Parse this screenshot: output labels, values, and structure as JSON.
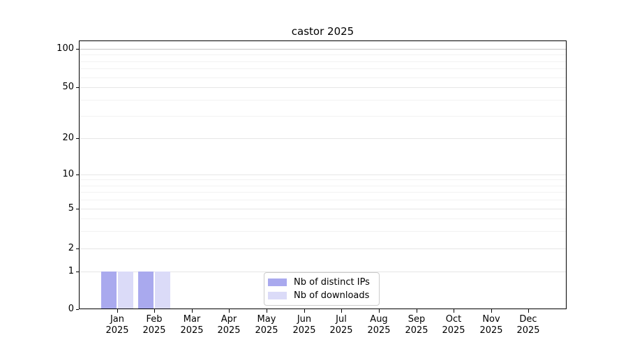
{
  "chart_data": {
    "type": "bar",
    "title": "castor 2025",
    "xlabel": "",
    "ylabel": "",
    "categories": [
      {
        "month": "Jan",
        "year": "2025"
      },
      {
        "month": "Feb",
        "year": "2025"
      },
      {
        "month": "Mar",
        "year": "2025"
      },
      {
        "month": "Apr",
        "year": "2025"
      },
      {
        "month": "May",
        "year": "2025"
      },
      {
        "month": "Jun",
        "year": "2025"
      },
      {
        "month": "Jul",
        "year": "2025"
      },
      {
        "month": "Aug",
        "year": "2025"
      },
      {
        "month": "Sep",
        "year": "2025"
      },
      {
        "month": "Oct",
        "year": "2025"
      },
      {
        "month": "Nov",
        "year": "2025"
      },
      {
        "month": "Dec",
        "year": "2025"
      }
    ],
    "series": [
      {
        "name": "Nb of distinct IPs",
        "color": "#a9a9ee",
        "values": [
          1,
          1,
          0,
          0,
          0,
          0,
          0,
          0,
          0,
          0,
          0,
          0
        ]
      },
      {
        "name": "Nb of downloads",
        "color": "#dbdbf8",
        "values": [
          1,
          1,
          0,
          0,
          0,
          0,
          0,
          0,
          0,
          0,
          0,
          0
        ]
      }
    ],
    "y_axis": {
      "scale": "symlog",
      "ylim": [
        0,
        120
      ],
      "ticks": [
        {
          "value": 0,
          "label": "0"
        },
        {
          "value": 1,
          "label": "1"
        },
        {
          "value": 2,
          "label": "2"
        },
        {
          "value": 5,
          "label": "5"
        },
        {
          "value": 10,
          "label": "10"
        },
        {
          "value": 20,
          "label": "20"
        },
        {
          "value": 50,
          "label": "50"
        },
        {
          "value": 100,
          "label": "100"
        }
      ],
      "minor_ticks": [
        3,
        4,
        6,
        7,
        8,
        9,
        30,
        40,
        60,
        70,
        80,
        90
      ]
    },
    "grid": "on",
    "grid_colors": {
      "top_major": "#c6c6c6",
      "major": "#e6e6e6",
      "minor": "#f2f2f2"
    },
    "legend": {
      "position": "bottom-center",
      "border_color": "#cccccc",
      "entries": [
        "Nb of distinct IPs",
        "Nb of downloads"
      ]
    }
  }
}
